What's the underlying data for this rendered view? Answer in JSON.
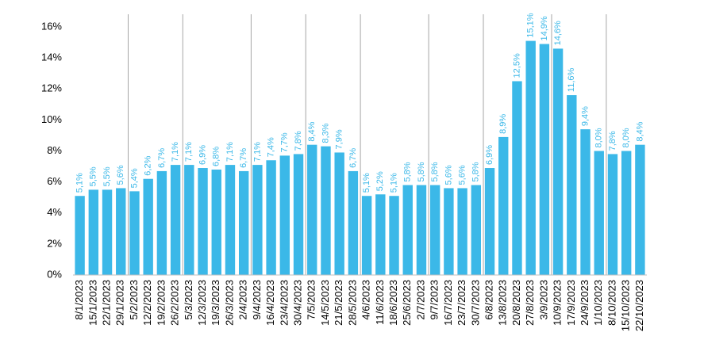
{
  "chart_data": {
    "type": "bar",
    "categories": [
      "8/1/2023",
      "15/1/2023",
      "22/1/2023",
      "29/1/2023",
      "5/2/2023",
      "12/2/2023",
      "19/2/2023",
      "26/2/2023",
      "5/3/2023",
      "12/3/2023",
      "19/3/2023",
      "26/3/2023",
      "2/4/2023",
      "9/4/2023",
      "16/4/2023",
      "23/4/2023",
      "30/4/2023",
      "7/5/2023",
      "14/5/2023",
      "21/5/2023",
      "28/5/2023",
      "4/6/2023",
      "11/6/2023",
      "18/6/2023",
      "25/6/2023",
      "2/7/2023",
      "9/7/2023",
      "16/7/2023",
      "23/7/2023",
      "30/7/2023",
      "6/8/2023",
      "13/8/2023",
      "20/8/2023",
      "27/8/2023",
      "3/9/2023",
      "10/9/2023",
      "17/9/2023",
      "24/9/2023",
      "1/10/2023",
      "8/10/2023",
      "15/10/2023",
      "22/10/2023"
    ],
    "values": [
      5.1,
      5.5,
      5.5,
      5.6,
      5.4,
      6.2,
      6.7,
      7.1,
      7.1,
      6.9,
      6.8,
      7.1,
      6.7,
      7.1,
      7.4,
      7.7,
      7.8,
      8.4,
      8.3,
      7.9,
      6.7,
      5.1,
      5.2,
      5.1,
      5.8,
      5.8,
      5.8,
      5.6,
      5.6,
      5.8,
      6.9,
      8.9,
      12.5,
      15.1,
      14.9,
      14.6,
      11.6,
      9.4,
      8.0,
      7.8,
      8.0,
      8.4
    ],
    "value_labels": [
      "5,1%",
      "5,5%",
      "5,5%",
      "5,6%",
      "5,4%",
      "6,2%",
      "6,7%",
      "7,1%",
      "7,1%",
      "6,9%",
      "6,8%",
      "7,1%",
      "6,7%",
      "7,1%",
      "7,4%",
      "7,7%",
      "7,8%",
      "8,4%",
      "8,3%",
      "7,9%",
      "6,7%",
      "5,1%",
      "5,2%",
      "5,1%",
      "5,8%",
      "5,8%",
      "5,8%",
      "5,6%",
      "5,6%",
      "5,8%",
      "6,9%",
      "8,9%",
      "12,5%",
      "15,1%",
      "14,9%",
      "14,6%",
      "11,6%",
      "9,4%",
      "8,0%",
      "7,8%",
      "8,0%",
      "8,4%"
    ],
    "color": "#3bb8e8",
    "ylim": [
      0,
      16
    ],
    "yticks": [
      {
        "value": 0,
        "label": "0%"
      },
      {
        "value": 2,
        "label": "2%"
      },
      {
        "value": 4,
        "label": "4%"
      },
      {
        "value": 6,
        "label": "6%"
      },
      {
        "value": 8,
        "label": "8%"
      },
      {
        "value": 10,
        "label": "10%"
      },
      {
        "value": 12,
        "label": "12%"
      },
      {
        "value": 14,
        "label": "14%"
      },
      {
        "value": 16,
        "label": "16%"
      }
    ],
    "grid": false
  }
}
